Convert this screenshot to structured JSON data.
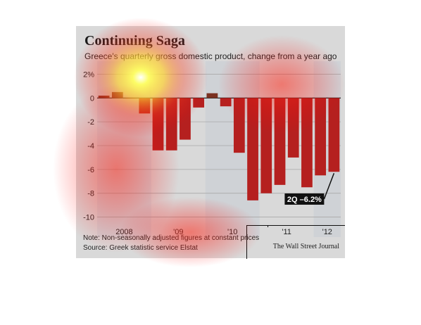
{
  "title": "Continuing Saga",
  "subtitle": "Greece's quarterly gross domestic product, change from a year ago",
  "note": "Note: Non-seasonally adjusted figures at constant prices",
  "source": "Source: Greek statistic service Elstat",
  "publisher": "The Wall Street Journal",
  "callout": "2Q –6.2%",
  "colors": {
    "negative": "#b5201f",
    "positive": "#7a3020",
    "panel": "#d9d9d9"
  },
  "chart_data": {
    "type": "bar",
    "title": "Continuing Saga",
    "subtitle": "Greece's quarterly gross domestic product, change from a year ago",
    "y_tick_labels": [
      "2%",
      "0",
      "-2",
      "-4",
      "-6",
      "-8",
      "-10"
    ],
    "y_ticks": [
      2,
      0,
      -2,
      -4,
      -6,
      -8,
      -10
    ],
    "ylim": [
      -10.5,
      2.5
    ],
    "x_tick_labels": [
      "2008",
      "'09",
      "'10",
      "'11",
      "'12"
    ],
    "year_groups": [
      {
        "label": "2008",
        "start": 0,
        "end": 3
      },
      {
        "label": "'09",
        "start": 4,
        "end": 7
      },
      {
        "label": "'10",
        "start": 8,
        "end": 11
      },
      {
        "label": "'11",
        "start": 12,
        "end": 15
      },
      {
        "label": "'12",
        "start": 16,
        "end": 17
      }
    ],
    "values": [
      0.2,
      0.5,
      0.0,
      -1.3,
      -4.4,
      -4.4,
      -3.5,
      -0.8,
      0.4,
      -0.7,
      -4.6,
      -8.6,
      -8.0,
      -7.3,
      -5.0,
      -7.5,
      -6.5,
      -6.2
    ],
    "annotation": "2Q –6.2%",
    "grid": "horizontal"
  }
}
